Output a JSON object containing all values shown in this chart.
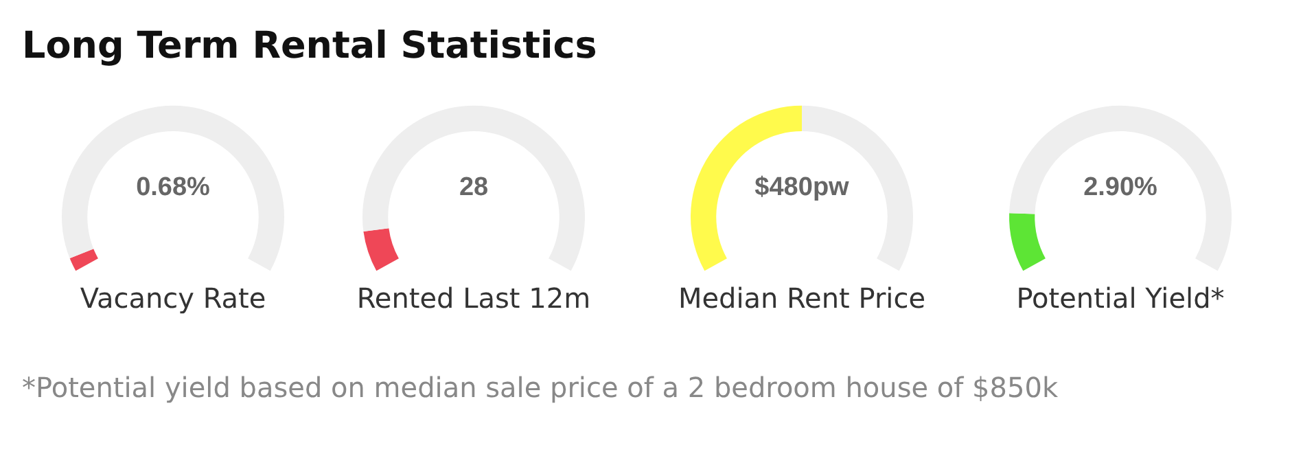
{
  "chart_data": [
    {
      "type": "other",
      "title": "Long Term Rental Statistics",
      "annotations": [
        "*Potential yield based on median sale price of a 2 bedroom house of $850k"
      ]
    },
    {
      "type": "donut",
      "title": "Vacancy Rate",
      "annotations": [
        "0.68%"
      ],
      "categories": [
        null,
        null
      ],
      "values": [
        3,
        97
      ],
      "colors": [
        "#ef4757",
        "#eeeeee"
      ]
    },
    {
      "type": "donut",
      "title": "Rented Last 12m",
      "annotations": [
        "28"
      ],
      "categories": [
        null,
        null
      ],
      "values": [
        9,
        91
      ],
      "colors": [
        "#ef4757",
        "#eeeeee"
      ]
    },
    {
      "type": "donut",
      "title": "Median Rent Price",
      "annotations": [
        "$480pw"
      ],
      "categories": [
        null,
        null
      ],
      "values": [
        50,
        50
      ],
      "colors": [
        "#fffa4c",
        "#eeeeee"
      ]
    },
    {
      "type": "donut",
      "title": "Potential Yield*",
      "annotations": [
        "2.90%"
      ],
      "categories": [
        null,
        null
      ],
      "values": [
        13,
        87
      ],
      "colors": [
        "#5de535",
        "#eeeeee"
      ]
    }
  ]
}
